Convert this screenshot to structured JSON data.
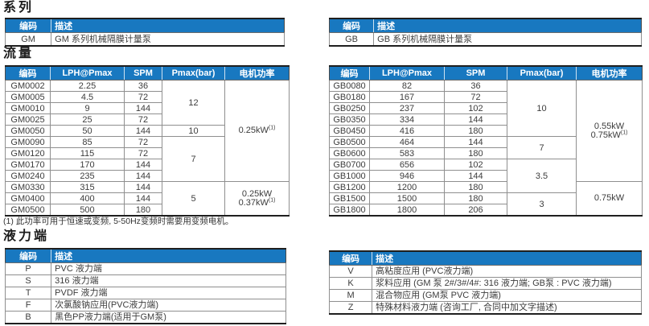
{
  "colors": {
    "header_bg": "#1878c0",
    "header_text": "#ffffff",
    "table_border": "#1f1f1f",
    "grid_line": "#8f8f8f",
    "body_text": "#3c3c3c"
  },
  "series": {
    "title": "系列",
    "headers": [
      "编码",
      "描述"
    ],
    "gm": {
      "rows": [
        [
          "GM",
          "GM 系列机械隔膜计量泵"
        ]
      ]
    },
    "gb": {
      "rows": [
        [
          "GB",
          "GB 系列机械隔膜计量泵"
        ]
      ]
    }
  },
  "flow": {
    "title": "流量",
    "headers": [
      "编码",
      "LPH@Pmax",
      "SPM",
      "Pmax(bar)",
      "电机功率"
    ],
    "gm": {
      "rows": [
        [
          "GM0002",
          "2.25",
          "36"
        ],
        [
          "GM0005",
          "4.5",
          "72"
        ],
        [
          "GM0010",
          "9",
          "144"
        ],
        [
          "GM0025",
          "25",
          "72"
        ],
        [
          "GM0050",
          "50",
          "144"
        ],
        [
          "GM0090",
          "85",
          "72"
        ],
        [
          "GM0120",
          "115",
          "72"
        ],
        [
          "GM0170",
          "170",
          "144"
        ],
        [
          "GM0240",
          "235",
          "144"
        ],
        [
          "GM0330",
          "315",
          "144"
        ],
        [
          "GM0400",
          "400",
          "144"
        ],
        [
          "GM0500",
          "500",
          "180"
        ]
      ],
      "pmax_groups": [
        {
          "value": "12",
          "span": 4
        },
        {
          "value": "10",
          "span": 1
        },
        {
          "value": "7",
          "span": 4
        },
        {
          "value": "5",
          "span": 3
        }
      ],
      "power_groups": [
        {
          "span": 9,
          "lines": [
            {
              "text": "0.25kW",
              "sup": "(1)"
            }
          ]
        },
        {
          "span": 3,
          "lines": [
            {
              "text": "0.25kW",
              "sup": ""
            },
            {
              "text": "0.37kW",
              "sup": "(1)"
            }
          ]
        }
      ]
    },
    "gb": {
      "rows": [
        [
          "GB0080",
          "82",
          "36"
        ],
        [
          "GB0180",
          "167",
          "72"
        ],
        [
          "GB0250",
          "237",
          "102"
        ],
        [
          "GB0350",
          "334",
          "144"
        ],
        [
          "GB0450",
          "416",
          "180"
        ],
        [
          "GB0500",
          "464",
          "144"
        ],
        [
          "GB0600",
          "583",
          "180"
        ],
        [
          "GB0700",
          "656",
          "102"
        ],
        [
          "GB1000",
          "946",
          "144"
        ],
        [
          "GB1200",
          "1200",
          "180"
        ],
        [
          "GB1500",
          "1500",
          "180"
        ],
        [
          "GB1800",
          "1800",
          "206"
        ]
      ],
      "pmax_groups": [
        {
          "value": "10",
          "span": 5
        },
        {
          "value": "7",
          "span": 2
        },
        {
          "value": "3.5",
          "span": 3
        },
        {
          "value": "3",
          "span": 2
        }
      ],
      "power_groups": [
        {
          "span": 9,
          "lines": [
            {
              "text": "0.55kW",
              "sup": ""
            },
            {
              "text": "0.75kW",
              "sup": "(1)"
            }
          ]
        },
        {
          "span": 3,
          "lines": [
            {
              "text": "0.75kW",
              "sup": ""
            }
          ]
        }
      ]
    },
    "footnote": "(1) 此功率可用于恒速或变频, 5-50Hz变频时需要用变频电机。"
  },
  "hydraulic": {
    "title": "液力端",
    "headers": [
      "编码",
      "描述"
    ],
    "left": {
      "rows": [
        [
          "P",
          "PVC 液力端"
        ],
        [
          "S",
          "316 液力端"
        ],
        [
          "T",
          "PVDF 液力端"
        ],
        [
          "F",
          "次氯酸钠应用(PVC液力端)"
        ],
        [
          "B",
          "黑色PP液力端(适用于GM泵)"
        ]
      ]
    },
    "right": {
      "rows": [
        [
          "V",
          "高粘度应用 (PVC液力端)"
        ],
        [
          "K",
          "浆料应用 (GM 泵 2#/3#/4#: 316 液力端; GB泵 : PVC 液力端)"
        ],
        [
          "M",
          "混合物应用 (GM泵 PVC 液力端)"
        ],
        [
          "Z",
          "特殊材料液力端 (咨询工厂, 合同中加文字描述)"
        ]
      ]
    }
  }
}
